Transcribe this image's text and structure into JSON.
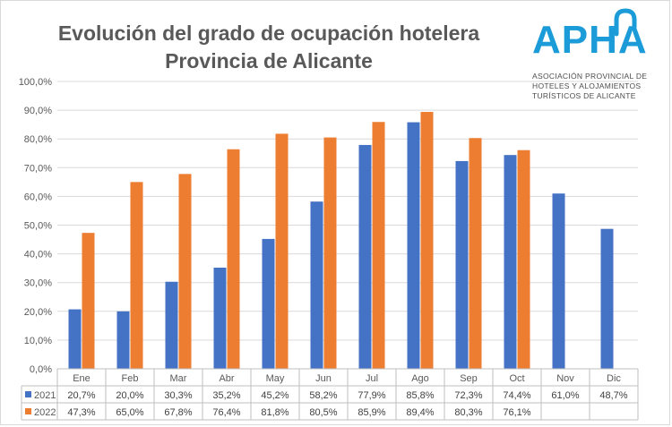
{
  "chart_data": {
    "type": "bar",
    "title_line1": "Evolución del grado de ocupación hotelera",
    "title_line2": "Provincia de Alicante",
    "categories": [
      "Ene",
      "Feb",
      "Mar",
      "Abr",
      "May",
      "Jun",
      "Jul",
      "Ago",
      "Sep",
      "Oct",
      "Nov",
      "Dic"
    ],
    "series": [
      {
        "name": "2021",
        "color": "#4472c4",
        "values": [
          20.7,
          20.0,
          30.3,
          35.2,
          45.2,
          58.2,
          77.9,
          85.8,
          72.3,
          74.4,
          61.0,
          48.7
        ],
        "labels": [
          "20,7%",
          "20,0%",
          "30,3%",
          "35,2%",
          "45,2%",
          "58,2%",
          "77,9%",
          "85,8%",
          "72,3%",
          "74,4%",
          "61,0%",
          "48,7%"
        ]
      },
      {
        "name": "2022",
        "color": "#ed7d31",
        "values": [
          47.3,
          65.0,
          67.8,
          76.4,
          81.8,
          80.5,
          85.9,
          89.4,
          80.3,
          76.1,
          null,
          null
        ],
        "labels": [
          "47,3%",
          "65,0%",
          "67,8%",
          "76,4%",
          "81,8%",
          "80,5%",
          "85,9%",
          "89,4%",
          "80,3%",
          "76,1%",
          "",
          ""
        ]
      }
    ],
    "yticks": [
      "0,0%",
      "10,0%",
      "20,0%",
      "30,0%",
      "40,0%",
      "50,0%",
      "60,0%",
      "70,0%",
      "80,0%",
      "90,0%",
      "100,0%"
    ],
    "ylim": [
      0,
      100
    ],
    "grid": true,
    "legend": "data-table"
  },
  "logo": {
    "brand": "APHA",
    "line1": "ASOCIACIÓN PROVINCIAL DE",
    "line2": "HOTELES Y ALOJAMIENTOS",
    "line3": "TURÍSTICOS DE ALICANTE",
    "color": "#1b9bd7"
  }
}
